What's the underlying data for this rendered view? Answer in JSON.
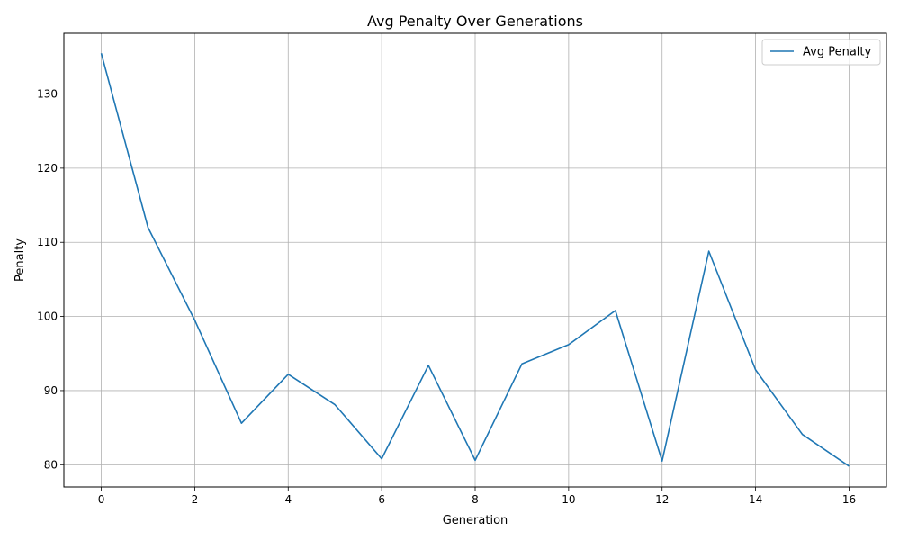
{
  "chart_data": {
    "type": "line",
    "title": "Avg Penalty Over Generations",
    "xlabel": "Generation",
    "ylabel": "Penalty",
    "xlim": [
      -0.8,
      16.8
    ],
    "ylim": [
      77.0,
      138.2
    ],
    "xticks": [
      0,
      2,
      4,
      6,
      8,
      10,
      12,
      14,
      16
    ],
    "yticks": [
      80,
      90,
      100,
      110,
      120,
      130
    ],
    "grid": true,
    "legend_position": "top-right",
    "series": [
      {
        "name": "Avg Penalty",
        "color": "#1f77b4",
        "x": [
          0,
          1,
          2,
          3,
          4,
          5,
          6,
          7,
          8,
          9,
          10,
          11,
          12,
          13,
          14,
          15,
          16
        ],
        "values": [
          135.5,
          112.0,
          99.5,
          85.6,
          92.2,
          88.1,
          80.8,
          93.4,
          80.6,
          93.6,
          96.2,
          100.8,
          80.5,
          108.8,
          92.8,
          84.1,
          79.8
        ]
      }
    ]
  }
}
